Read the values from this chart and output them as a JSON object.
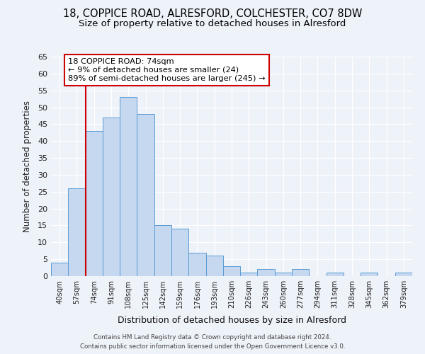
{
  "title1": "18, COPPICE ROAD, ALRESFORD, COLCHESTER, CO7 8DW",
  "title2": "Size of property relative to detached houses in Alresford",
  "xlabel": "Distribution of detached houses by size in Alresford",
  "ylabel": "Number of detached properties",
  "categories": [
    "40sqm",
    "57sqm",
    "74sqm",
    "91sqm",
    "108sqm",
    "125sqm",
    "142sqm",
    "159sqm",
    "176sqm",
    "193sqm",
    "210sqm",
    "226sqm",
    "243sqm",
    "260sqm",
    "277sqm",
    "294sqm",
    "311sqm",
    "328sqm",
    "345sqm",
    "362sqm",
    "379sqm"
  ],
  "values": [
    4,
    26,
    43,
    47,
    53,
    48,
    15,
    14,
    7,
    6,
    3,
    1,
    2,
    1,
    2,
    0,
    1,
    0,
    1,
    0,
    1
  ],
  "bar_color": "#c5d8f0",
  "bar_edge_color": "#5b9bd5",
  "highlight_index": 2,
  "highlight_line_color": "#cc0000",
  "ylim": [
    0,
    65
  ],
  "yticks": [
    0,
    5,
    10,
    15,
    20,
    25,
    30,
    35,
    40,
    45,
    50,
    55,
    60,
    65
  ],
  "annotation_title": "18 COPPICE ROAD: 74sqm",
  "annotation_line1": "← 9% of detached houses are smaller (24)",
  "annotation_line2": "89% of semi-detached houses are larger (245) →",
  "annotation_box_color": "#ffffff",
  "annotation_box_edge": "#cc0000",
  "footer1": "Contains HM Land Registry data © Crown copyright and database right 2024.",
  "footer2": "Contains public sector information licensed under the Open Government Licence v3.0.",
  "background_color": "#eef2f9",
  "grid_color": "#ffffff",
  "title1_fontsize": 10.5,
  "title2_fontsize": 9.5
}
